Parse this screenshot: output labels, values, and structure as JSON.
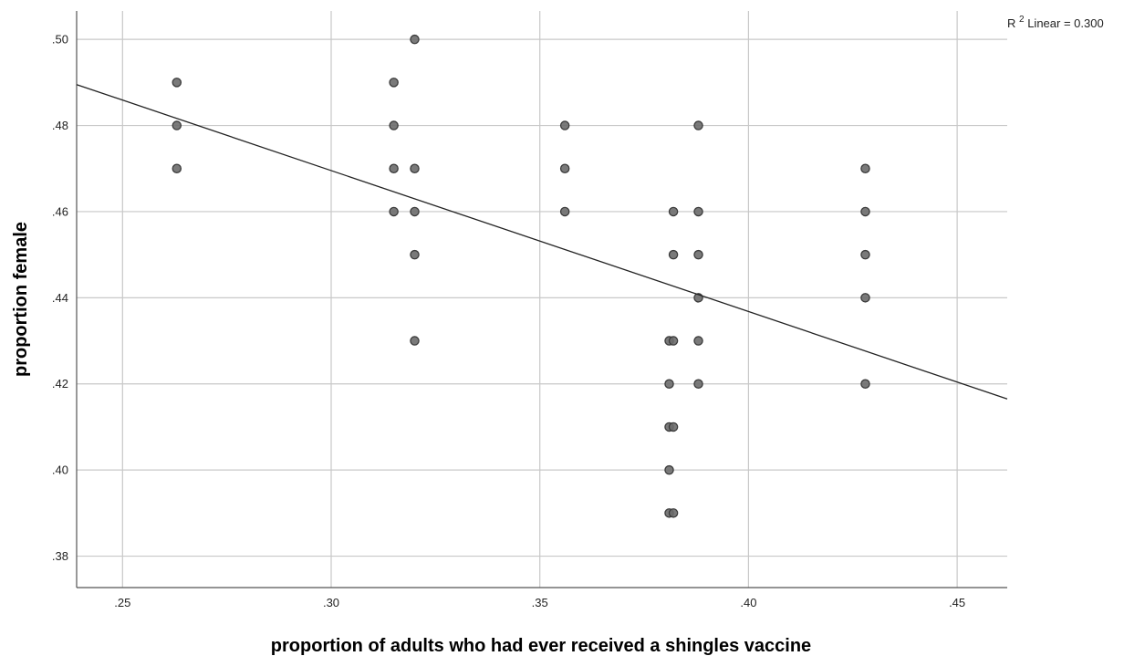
{
  "chart_data": {
    "type": "scatter",
    "title": "",
    "xlabel": "proportion of adults who had ever received a shingles vaccine",
    "ylabel": "proportion female",
    "xlim": [
      0.239,
      0.462
    ],
    "ylim": [
      0.3727,
      0.5066
    ],
    "x_ticks": [
      0.25,
      0.3,
      0.35,
      0.4,
      0.45
    ],
    "x_tick_labels": [
      ".25",
      ".30",
      ".35",
      ".40",
      ".45"
    ],
    "y_ticks": [
      0.38,
      0.4,
      0.42,
      0.44,
      0.46,
      0.48,
      0.5
    ],
    "y_tick_labels": [
      ".38",
      ".40",
      ".42",
      ".44",
      ".46",
      ".48",
      ".50"
    ],
    "grid": true,
    "points": [
      {
        "x": 0.263,
        "y": 0.49
      },
      {
        "x": 0.263,
        "y": 0.48
      },
      {
        "x": 0.263,
        "y": 0.47
      },
      {
        "x": 0.315,
        "y": 0.49
      },
      {
        "x": 0.315,
        "y": 0.48
      },
      {
        "x": 0.315,
        "y": 0.47
      },
      {
        "x": 0.315,
        "y": 0.46
      },
      {
        "x": 0.32,
        "y": 0.5
      },
      {
        "x": 0.32,
        "y": 0.47
      },
      {
        "x": 0.32,
        "y": 0.46
      },
      {
        "x": 0.32,
        "y": 0.45
      },
      {
        "x": 0.32,
        "y": 0.43
      },
      {
        "x": 0.356,
        "y": 0.48
      },
      {
        "x": 0.356,
        "y": 0.47
      },
      {
        "x": 0.356,
        "y": 0.46
      },
      {
        "x": 0.381,
        "y": 0.43
      },
      {
        "x": 0.381,
        "y": 0.42
      },
      {
        "x": 0.381,
        "y": 0.41
      },
      {
        "x": 0.381,
        "y": 0.4
      },
      {
        "x": 0.381,
        "y": 0.39
      },
      {
        "x": 0.382,
        "y": 0.46
      },
      {
        "x": 0.382,
        "y": 0.45
      },
      {
        "x": 0.382,
        "y": 0.43
      },
      {
        "x": 0.382,
        "y": 0.41
      },
      {
        "x": 0.382,
        "y": 0.39
      },
      {
        "x": 0.388,
        "y": 0.48
      },
      {
        "x": 0.388,
        "y": 0.46
      },
      {
        "x": 0.388,
        "y": 0.45
      },
      {
        "x": 0.388,
        "y": 0.44
      },
      {
        "x": 0.388,
        "y": 0.43
      },
      {
        "x": 0.388,
        "y": 0.42
      },
      {
        "x": 0.428,
        "y": 0.47
      },
      {
        "x": 0.428,
        "y": 0.46
      },
      {
        "x": 0.428,
        "y": 0.45
      },
      {
        "x": 0.428,
        "y": 0.44
      },
      {
        "x": 0.428,
        "y": 0.42
      }
    ],
    "fit_line": {
      "type": "linear",
      "start": {
        "x": 0.239,
        "y": 0.4895
      },
      "end": {
        "x": 0.462,
        "y": 0.4165
      }
    },
    "r2_annotation": {
      "prefix": "R",
      "superscript": "2",
      "text": " Linear = 0.300"
    },
    "colors": {
      "point_fill": "#6b6b6b",
      "point_stroke": "#3a3a3a",
      "grid": "#c8c8c8",
      "axis": "#555555",
      "fit_line": "#222222"
    }
  }
}
